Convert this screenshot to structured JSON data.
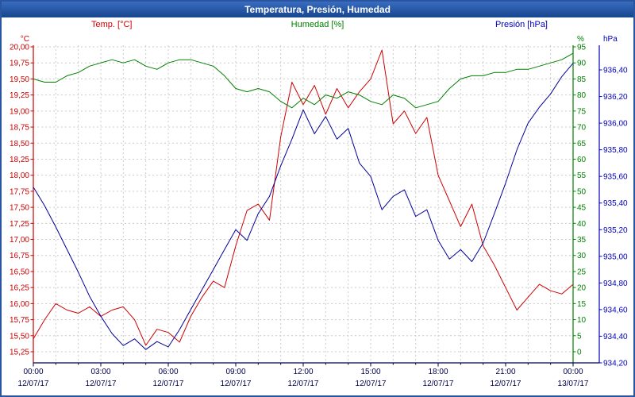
{
  "title": "Temperatura, Presión, Humedad",
  "legend": {
    "temp": "Temp. [°C]",
    "humidity": "Humedad [%]",
    "pressure": "Presión [hPa]"
  },
  "colors": {
    "grid": "#cccccc",
    "x_label": "#00004d",
    "temp": "#cc0000",
    "humidity": "#008000",
    "pressure_line": "#000099",
    "pressure_label": "#0000bb",
    "titlebar": "#16468e"
  },
  "chart_data": {
    "type": "line",
    "title": "Temperatura, Presión, Humedad",
    "x_unit": "hours",
    "x_range_hours": [
      0,
      24
    ],
    "x": [
      0,
      0.5,
      1,
      1.5,
      2,
      2.5,
      3,
      3.5,
      4,
      4.5,
      5,
      5.5,
      6,
      6.5,
      7,
      7.5,
      8,
      8.5,
      9,
      9.5,
      10,
      10.5,
      11,
      11.5,
      12,
      12.5,
      13,
      13.5,
      14,
      14.5,
      15,
      15.5,
      16,
      16.5,
      17,
      17.5,
      18,
      18.5,
      19,
      19.5,
      20,
      20.5,
      21,
      21.5,
      22,
      22.5,
      23,
      23.5,
      24
    ],
    "x_ticks": [
      {
        "time": "00:00",
        "date": "12/07/17"
      },
      {
        "time": "03:00",
        "date": "12/07/17"
      },
      {
        "time": "06:00",
        "date": "12/07/17"
      },
      {
        "time": "09:00",
        "date": "12/07/17"
      },
      {
        "time": "12:00",
        "date": "12/07/17"
      },
      {
        "time": "15:00",
        "date": "12/07/17"
      },
      {
        "time": "18:00",
        "date": "12/07/17"
      },
      {
        "time": "21:00",
        "date": "12/07/17"
      },
      {
        "time": "00:00",
        "date": "13/07/17"
      }
    ],
    "temp_axis": {
      "unit": "°C",
      "tick_min": 15.25,
      "tick_max": 20.0,
      "step": 0.25,
      "decimals": 2,
      "color": "#cc0000"
    },
    "humidity_axis": {
      "unit": "%",
      "tick_min": 0,
      "tick_max": 95,
      "step": 5,
      "decimals": 0,
      "color": "#008000"
    },
    "pressure_axis": {
      "unit": "hPa",
      "tick_min": 934.2,
      "tick_max": 936.4,
      "step": 0.2,
      "decimals": 2,
      "color": "#0000bb"
    },
    "series": [
      {
        "name": "Temp. [°C]",
        "axis": "temp",
        "color": "#cc0000",
        "values": [
          15.45,
          15.75,
          16.0,
          15.9,
          15.85,
          15.95,
          15.8,
          15.9,
          15.95,
          15.75,
          15.35,
          15.6,
          15.55,
          15.4,
          15.8,
          16.1,
          16.35,
          16.25,
          16.9,
          17.45,
          17.55,
          17.3,
          18.6,
          19.45,
          19.1,
          19.4,
          18.95,
          19.35,
          19.05,
          19.3,
          19.5,
          19.95,
          18.8,
          19.0,
          18.65,
          18.9,
          18.0,
          17.6,
          17.2,
          17.55,
          16.9,
          16.6,
          16.25,
          15.9,
          16.1,
          16.3,
          16.2,
          16.15,
          16.3
        ]
      },
      {
        "name": "Humedad [%]",
        "axis": "humidity",
        "color": "#008000",
        "values": [
          85,
          84,
          84,
          86,
          87,
          89,
          90,
          91,
          90,
          91,
          89,
          88,
          90,
          91,
          91,
          90,
          89,
          86,
          82,
          81,
          82,
          81,
          78,
          76,
          79,
          77,
          80,
          79,
          81,
          80,
          78,
          77,
          80,
          79,
          76,
          77,
          78,
          82,
          85,
          86,
          86,
          87,
          87,
          88,
          88,
          89,
          90,
          91,
          93
        ]
      },
      {
        "name": "Presión [hPa]",
        "axis": "pressure",
        "color": "#000099",
        "values": [
          935.52,
          935.38,
          935.22,
          935.05,
          934.88,
          934.7,
          934.55,
          934.42,
          934.33,
          934.38,
          934.3,
          934.36,
          934.32,
          934.45,
          934.6,
          934.75,
          934.9,
          935.05,
          935.2,
          935.12,
          935.32,
          935.45,
          935.68,
          935.88,
          936.1,
          935.92,
          936.05,
          935.88,
          935.96,
          935.7,
          935.6,
          935.35,
          935.45,
          935.5,
          935.3,
          935.35,
          935.12,
          934.98,
          935.05,
          934.96,
          935.1,
          935.32,
          935.55,
          935.8,
          936.0,
          936.12,
          936.22,
          936.35,
          936.45
        ]
      }
    ]
  }
}
